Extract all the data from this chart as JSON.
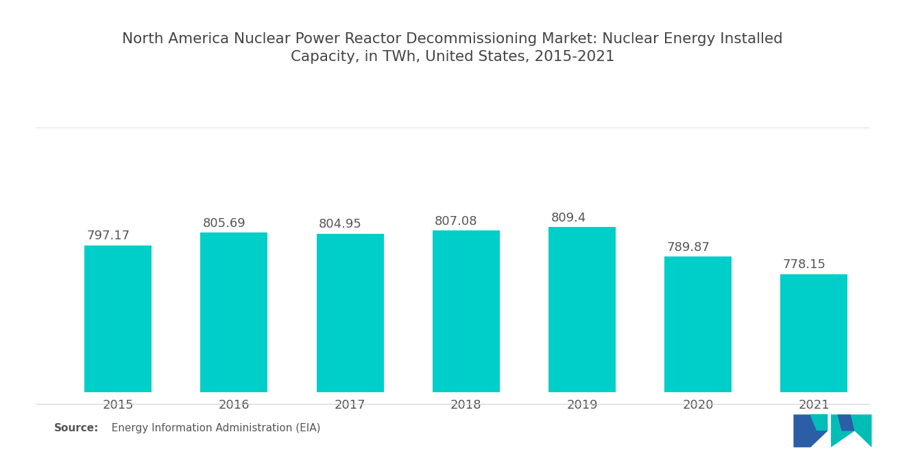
{
  "title_line1": "North America Nuclear Power Reactor Decommissioning Market: Nuclear Energy Installed",
  "title_line2": "Capacity, in TWh, United States, 2015-2021",
  "years": [
    "2015",
    "2016",
    "2017",
    "2018",
    "2019",
    "2020",
    "2021"
  ],
  "values": [
    797.17,
    805.69,
    804.95,
    807.08,
    809.4,
    789.87,
    778.15
  ],
  "bar_color": "#00CEC8",
  "background_color": "#FFFFFF",
  "text_color": "#555555",
  "title_color": "#444444",
  "source_bold": "Source:",
  "source_rest": "   Energy Information Administration (EIA)",
  "ylim_min": 700,
  "ylim_max": 860,
  "title_fontsize": 15.5,
  "tick_fontsize": 13,
  "source_fontsize": 11,
  "value_fontsize": 13,
  "bar_width": 0.58,
  "logo_left_color": "#2B5EA7",
  "logo_right_color": "#00BEB5"
}
